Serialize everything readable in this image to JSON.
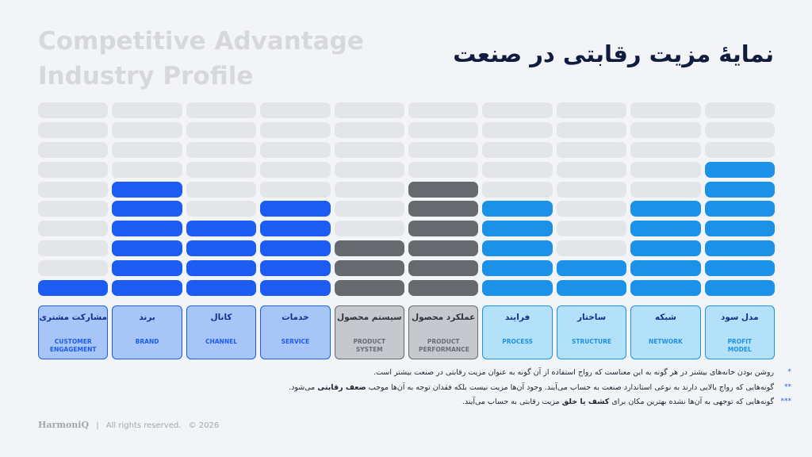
{
  "header": {
    "title_en": "Competitive Advantage Industry Profile",
    "title_fa": "نمایهٔ مزیت رقابتی در صنعت"
  },
  "chart_data": {
    "type": "bar",
    "categories": [
      "مشارکت مشتری",
      "برند",
      "کانال",
      "خدمات",
      "سیستم محصول",
      "عملکرد محصول",
      "فرایند",
      "ساختار",
      "شبکه",
      "مدل سود"
    ],
    "categories_en": [
      "CUSTOMER ENGAGEMENT",
      "BRAND",
      "CHANNEL",
      "SERVICE",
      "PRODUCT SYSTEM",
      "PRODUCT PERFORMANCE",
      "PROCESS",
      "STRUCTURE",
      "NETWORK",
      "PROFIT MODEL"
    ],
    "values": [
      1,
      6,
      4,
      5,
      3,
      6,
      5,
      2,
      5,
      7
    ],
    "colors": [
      "#1d5cf2",
      "#1d5cf2",
      "#1d5cf2",
      "#1d5cf2",
      "#66696e",
      "#66696e",
      "#1b92e8",
      "#1b92e8",
      "#1b92e8",
      "#1b92e8"
    ],
    "box_colors": [
      "#a8c5f8",
      "#a8c5f8",
      "#a8c5f8",
      "#a8c5f8",
      "#c5c8cd",
      "#c5c8cd",
      "#b3e1f9",
      "#b3e1f9",
      "#b3e1f9",
      "#b3e1f9"
    ],
    "ylim": [
      0,
      10
    ]
  },
  "notes": [
    {
      "marker": "*",
      "parts": [
        {
          "text": "روشن بودن خانه‌های بیشتر در هر گونه به این معناست که رواج استفاده از آن گونه به عنوان مزیت رقابتی در صنعت بیشتر است."
        }
      ]
    },
    {
      "marker": "**",
      "parts": [
        {
          "text": "گونه‌هایی که رواج بالایی دارند به نوعی استاندارد صنعت به حساب می‌آیند. وجود آن‌ها مزیت نیست بلکه فقدان توجه به آن‌ها موجب "
        },
        {
          "text": "ضعف رقابتی",
          "bold": true
        },
        {
          "text": " می‌شود."
        }
      ]
    },
    {
      "marker": "***",
      "parts": [
        {
          "text": "گونه‌هایی که توجهی به آن‌ها نشده بهترین مکان برای "
        },
        {
          "text": "کشف یا خلق",
          "bold": true
        },
        {
          "text": " مزیت رقابتی به حساب می‌آیند."
        }
      ]
    }
  ],
  "footer": {
    "brand": "HarmoniQ",
    "separator": "|",
    "rights": "All rights reserved.",
    "copyright": "© 2026"
  }
}
